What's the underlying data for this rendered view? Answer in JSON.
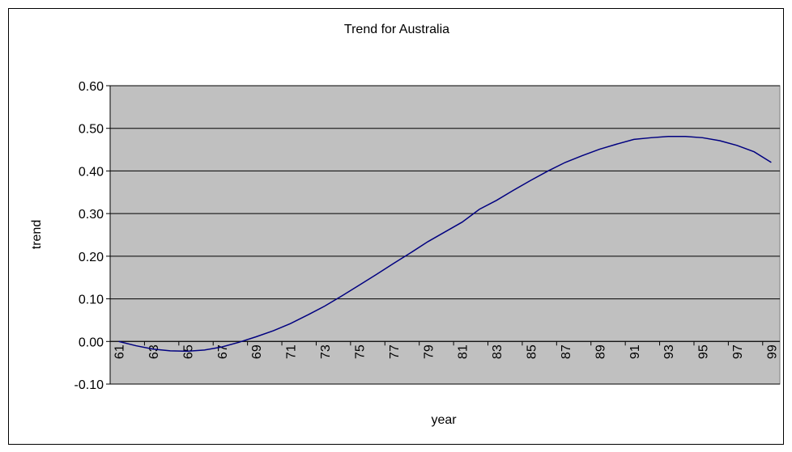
{
  "chart_data": {
    "type": "line",
    "title": "Trend for Australia",
    "x_label": "year",
    "y_label": "trend",
    "categories": [
      "61",
      null,
      "63",
      null,
      "65",
      null,
      "67",
      null,
      "69",
      null,
      "71",
      null,
      "73",
      null,
      "75",
      null,
      "77",
      null,
      "79",
      null,
      "81",
      null,
      "83",
      null,
      "85",
      null,
      "87",
      null,
      "89",
      null,
      "91",
      null,
      "93",
      null,
      "95",
      null,
      "97",
      null,
      "99"
    ],
    "values": [
      0.0,
      -0.01,
      -0.018,
      -0.022,
      -0.023,
      -0.02,
      -0.013,
      -0.002,
      0.011,
      0.025,
      0.042,
      0.062,
      0.083,
      0.107,
      0.132,
      0.157,
      0.183,
      0.208,
      0.234,
      0.257,
      0.28,
      0.31,
      0.331,
      0.355,
      0.378,
      0.4,
      0.42,
      0.436,
      0.451,
      0.463,
      0.474,
      0.478,
      0.481,
      0.481,
      0.478,
      0.471,
      0.46,
      0.445,
      0.42
    ],
    "color": "#000080",
    "ylim": [
      -0.1,
      0.6
    ],
    "yticks": [
      {
        "value": -0.1,
        "label": "-0.10"
      },
      {
        "value": 0,
        "label": "0.00"
      },
      {
        "value": 0.1,
        "label": "0.10"
      },
      {
        "value": 0.2,
        "label": "0.20"
      },
      {
        "value": 0.3,
        "label": "0.30"
      },
      {
        "value": 0.4,
        "label": "0.40"
      },
      {
        "value": 0.5,
        "label": "0.50"
      },
      {
        "value": 0.6,
        "label": "0.60"
      }
    ],
    "grid": true,
    "plot_background": "#c0c0c0"
  }
}
